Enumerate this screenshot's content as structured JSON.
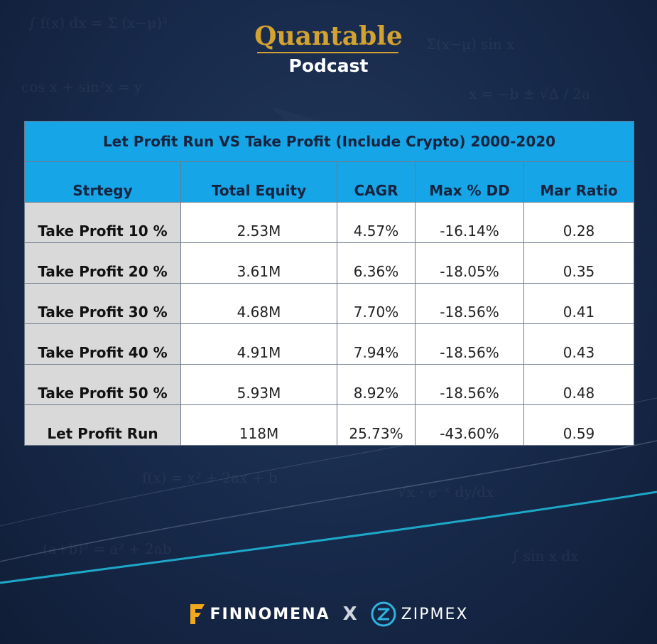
{
  "brand": {
    "title": "Quantable",
    "subtitle": "Podcast"
  },
  "table": {
    "title": "Let Profit Run VS Take Profit (Include Crypto) 2000-2020",
    "headers": [
      "Strtegy",
      "Total Equity",
      "CAGR",
      "Max % DD",
      "Mar Ratio"
    ],
    "rows": [
      [
        "Take Profit 10 %",
        "2.53M",
        "4.57%",
        "-16.14%",
        "0.28"
      ],
      [
        "Take Profit 20 %",
        "3.61M",
        "6.36%",
        "-18.05%",
        "0.35"
      ],
      [
        "Take Profit 30 %",
        "4.68M",
        "7.70%",
        "-18.56%",
        "0.41"
      ],
      [
        "Take Profit 40 %",
        "4.91M",
        "7.94%",
        "-18.56%",
        "0.43"
      ],
      [
        "Take Profit 50 %",
        "5.93M",
        "8.92%",
        "-18.56%",
        "0.48"
      ],
      [
        "Let Profit Run",
        "118M",
        "25.73%",
        "-43.60%",
        "0.59"
      ]
    ]
  },
  "footer": {
    "left_brand": "FINNOMENA",
    "separator": "X",
    "right_brand": "ZIPMEX",
    "left_icon": "finnomena-logo-icon",
    "right_icon": "zipmex-logo-icon"
  },
  "colors": {
    "background": "#17294a",
    "accent_gold": "#d3a22f",
    "header_blue": "#16a5e6",
    "strategy_cell": "#d9d9d9",
    "wave": "#1fb6d6"
  }
}
